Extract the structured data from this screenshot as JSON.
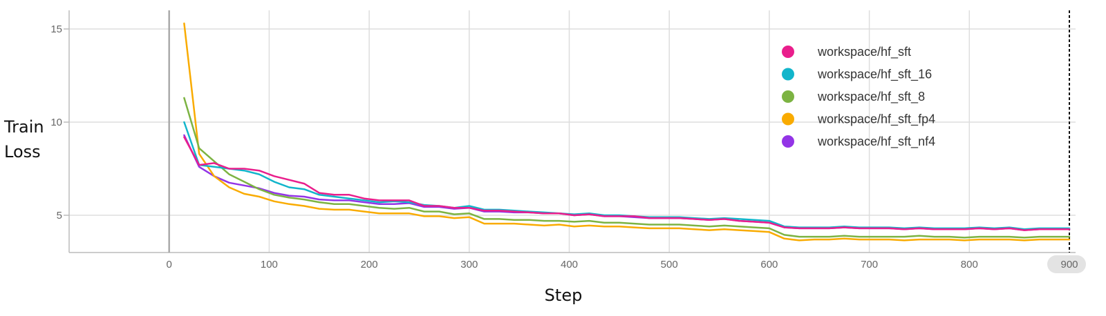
{
  "chart_data": {
    "type": "line",
    "xlabel": "Step",
    "ylabel": "Train Loss",
    "xlim": [
      -100,
      900
    ],
    "ylim": [
      3,
      16
    ],
    "x_ticks": [
      0,
      100,
      200,
      300,
      400,
      500,
      600,
      700,
      800,
      900
    ],
    "x_tick_labels": [
      "0",
      "100",
      "200",
      "300",
      "400",
      "500",
      "600",
      "700",
      "800",
      "900"
    ],
    "y_ticks": [
      5,
      10,
      15
    ],
    "y_tick_labels": [
      "5",
      "10",
      "15"
    ],
    "grid": true,
    "legend_position": "top-right",
    "cursor_step": 900,
    "series": [
      {
        "name": "workspace/hf_sft",
        "color": "#e91e8c",
        "x": [
          15,
          30,
          45,
          60,
          75,
          90,
          105,
          120,
          135,
          150,
          165,
          180,
          195,
          210,
          225,
          240,
          255,
          270,
          285,
          300,
          315,
          330,
          345,
          360,
          375,
          390,
          405,
          420,
          435,
          450,
          465,
          480,
          495,
          510,
          525,
          540,
          555,
          570,
          585,
          600,
          615,
          630,
          645,
          660,
          675,
          690,
          705,
          720,
          735,
          750,
          765,
          780,
          795,
          810,
          825,
          840,
          855,
          870,
          885,
          900
        ],
        "values": [
          9.2,
          7.7,
          7.8,
          7.5,
          7.5,
          7.4,
          7.1,
          6.9,
          6.7,
          6.2,
          6.1,
          6.1,
          5.9,
          5.8,
          5.8,
          5.8,
          5.5,
          5.5,
          5.4,
          5.4,
          5.25,
          5.25,
          5.2,
          5.15,
          5.1,
          5.1,
          5.0,
          5.05,
          4.95,
          4.95,
          4.95,
          4.85,
          4.85,
          4.85,
          4.8,
          4.75,
          4.8,
          4.7,
          4.65,
          4.6,
          4.35,
          4.3,
          4.3,
          4.3,
          4.35,
          4.3,
          4.3,
          4.3,
          4.25,
          4.3,
          4.25,
          4.25,
          4.25,
          4.3,
          4.25,
          4.3,
          4.2,
          4.25,
          4.25,
          4.25
        ]
      },
      {
        "name": "workspace/hf_sft_16",
        "color": "#12b5cb",
        "x": [
          15,
          30,
          45,
          60,
          75,
          90,
          105,
          120,
          135,
          150,
          165,
          180,
          195,
          210,
          225,
          240,
          255,
          270,
          285,
          300,
          315,
          330,
          345,
          360,
          375,
          390,
          405,
          420,
          435,
          450,
          465,
          480,
          495,
          510,
          525,
          540,
          555,
          570,
          585,
          600,
          615,
          630,
          645,
          660,
          675,
          690,
          705,
          720,
          735,
          750,
          765,
          780,
          795,
          810,
          825,
          840,
          855,
          870,
          885,
          900
        ],
        "values": [
          10.0,
          7.7,
          7.6,
          7.5,
          7.4,
          7.2,
          6.8,
          6.5,
          6.4,
          6.1,
          6.0,
          5.9,
          5.8,
          5.7,
          5.75,
          5.7,
          5.55,
          5.5,
          5.4,
          5.5,
          5.3,
          5.3,
          5.25,
          5.2,
          5.15,
          5.1,
          5.05,
          5.1,
          5.0,
          5.0,
          4.95,
          4.9,
          4.9,
          4.9,
          4.85,
          4.8,
          4.85,
          4.8,
          4.75,
          4.7,
          4.4,
          4.35,
          4.35,
          4.35,
          4.4,
          4.35,
          4.35,
          4.35,
          4.3,
          4.35,
          4.3,
          4.3,
          4.3,
          4.35,
          4.3,
          4.35,
          4.25,
          4.3,
          4.3,
          4.3
        ]
      },
      {
        "name": "workspace/hf_sft_8",
        "color": "#7cb342",
        "x": [
          15,
          30,
          45,
          60,
          75,
          90,
          105,
          120,
          135,
          150,
          165,
          180,
          195,
          210,
          225,
          240,
          255,
          270,
          285,
          300,
          315,
          330,
          345,
          360,
          375,
          390,
          405,
          420,
          435,
          450,
          465,
          480,
          495,
          510,
          525,
          540,
          555,
          570,
          585,
          600,
          615,
          630,
          645,
          660,
          675,
          690,
          705,
          720,
          735,
          750,
          765,
          780,
          795,
          810,
          825,
          840,
          855,
          870,
          885,
          900
        ],
        "values": [
          11.3,
          8.6,
          7.9,
          7.2,
          6.8,
          6.4,
          6.1,
          5.95,
          5.85,
          5.7,
          5.6,
          5.6,
          5.5,
          5.4,
          5.35,
          5.4,
          5.2,
          5.2,
          5.05,
          5.1,
          4.8,
          4.8,
          4.75,
          4.75,
          4.7,
          4.7,
          4.65,
          4.7,
          4.6,
          4.6,
          4.55,
          4.5,
          4.5,
          4.5,
          4.45,
          4.4,
          4.45,
          4.4,
          4.35,
          4.3,
          3.95,
          3.85,
          3.85,
          3.85,
          3.9,
          3.85,
          3.85,
          3.85,
          3.85,
          3.9,
          3.85,
          3.85,
          3.8,
          3.85,
          3.85,
          3.85,
          3.8,
          3.85,
          3.85,
          3.85
        ]
      },
      {
        "name": "workspace/hf_sft_fp4",
        "color": "#f9ab00",
        "x": [
          15,
          30,
          45,
          60,
          75,
          90,
          105,
          120,
          135,
          150,
          165,
          180,
          195,
          210,
          225,
          240,
          255,
          270,
          285,
          300,
          315,
          330,
          345,
          360,
          375,
          390,
          405,
          420,
          435,
          450,
          465,
          480,
          495,
          510,
          525,
          540,
          555,
          570,
          585,
          600,
          615,
          630,
          645,
          660,
          675,
          690,
          705,
          720,
          735,
          750,
          765,
          780,
          795,
          810,
          825,
          840,
          855,
          870,
          885,
          900
        ],
        "values": [
          15.3,
          8.3,
          7.1,
          6.5,
          6.15,
          6.0,
          5.75,
          5.6,
          5.5,
          5.35,
          5.3,
          5.3,
          5.2,
          5.1,
          5.1,
          5.1,
          4.95,
          4.95,
          4.85,
          4.9,
          4.55,
          4.55,
          4.55,
          4.5,
          4.45,
          4.5,
          4.4,
          4.45,
          4.4,
          4.4,
          4.35,
          4.3,
          4.3,
          4.3,
          4.25,
          4.2,
          4.25,
          4.2,
          4.15,
          4.1,
          3.75,
          3.65,
          3.7,
          3.7,
          3.75,
          3.7,
          3.7,
          3.7,
          3.65,
          3.7,
          3.7,
          3.7,
          3.65,
          3.7,
          3.7,
          3.7,
          3.65,
          3.7,
          3.7,
          3.7
        ]
      },
      {
        "name": "workspace/hf_sft_nf4",
        "color": "#9334e6",
        "x": [
          15,
          30,
          45,
          60,
          75,
          90,
          105,
          120,
          135,
          150,
          165,
          180,
          195,
          210,
          225,
          240,
          255,
          270,
          285,
          300,
          315,
          330,
          345,
          360,
          375,
          390,
          405,
          420,
          435,
          450,
          465,
          480,
          495,
          510,
          525,
          540,
          555,
          570,
          585,
          600,
          615,
          630,
          645,
          660,
          675,
          690,
          705,
          720,
          735,
          750,
          765,
          780,
          795,
          810,
          825,
          840,
          855,
          870,
          885,
          900
        ],
        "values": [
          9.3,
          7.6,
          7.1,
          6.75,
          6.6,
          6.45,
          6.2,
          6.05,
          6.0,
          5.85,
          5.8,
          5.8,
          5.7,
          5.6,
          5.6,
          5.65,
          5.45,
          5.45,
          5.35,
          5.4,
          5.2,
          5.2,
          5.15,
          5.15,
          5.1,
          5.1,
          5.0,
          5.05,
          4.95,
          4.95,
          4.9,
          4.85,
          4.85,
          4.85,
          4.8,
          4.75,
          4.8,
          4.7,
          4.65,
          4.6,
          4.35,
          4.3,
          4.3,
          4.3,
          4.35,
          4.3,
          4.3,
          4.3,
          4.25,
          4.3,
          4.25,
          4.25,
          4.25,
          4.3,
          4.25,
          4.3,
          4.2,
          4.25,
          4.25,
          4.25
        ]
      }
    ]
  }
}
